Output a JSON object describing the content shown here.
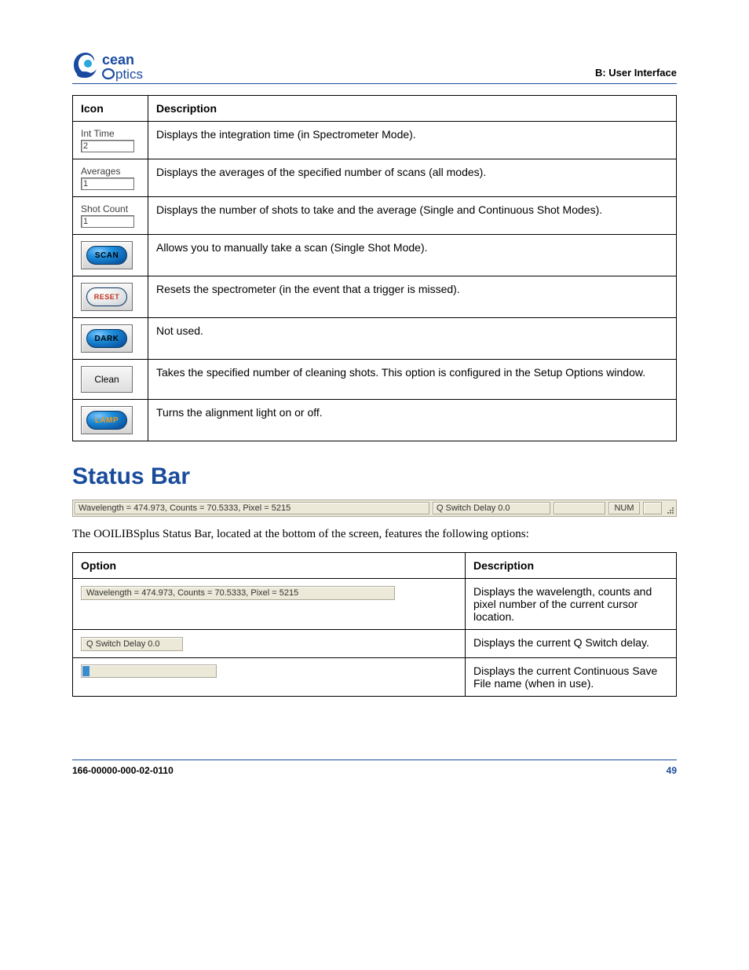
{
  "brand": {
    "name1": "Ocean",
    "name2": "Optics",
    "primary": "#1a4aa0",
    "accent": "#2aa7df"
  },
  "header_right": "B: User Interface",
  "icon_table": {
    "headers": [
      "Icon",
      "Description"
    ],
    "rows": [
      {
        "kind": "field",
        "label": "Int Time",
        "value": "2",
        "desc": "Displays the integration time (in Spectrometer Mode)."
      },
      {
        "kind": "field",
        "label": "Averages",
        "value": "1",
        "desc": "Displays the averages of the specified number of scans (all modes)."
      },
      {
        "kind": "field",
        "label": "Shot Count",
        "value": "1",
        "desc": "Displays the number of shots to take and the average (Single and Continuous Shot Modes)."
      },
      {
        "kind": "oval",
        "style": "blue",
        "text": "SCAN",
        "text_class": "oval-text-scan",
        "desc": "Allows you to manually take a scan (Single Shot Mode)."
      },
      {
        "kind": "oval",
        "style": "white",
        "text": "RESET",
        "text_class": "",
        "desc": "Resets the spectrometer (in the event that a trigger is missed)."
      },
      {
        "kind": "oval",
        "style": "blue",
        "text": "DARK",
        "text_class": "oval-text-dark",
        "desc": "Not used."
      },
      {
        "kind": "plain",
        "text": "Clean",
        "desc": "Takes the specified number of cleaning shots. This option is configured in the Setup Options window."
      },
      {
        "kind": "oval",
        "style": "blue",
        "text": "LAMP",
        "text_class": "oval-text-lamp",
        "desc": "Turns the alignment light on or off."
      }
    ]
  },
  "section_heading": "Status Bar",
  "statusbar": {
    "main": "Wavelength = 474.973, Counts = 70.5333, Pixel = 5215",
    "qswitch": "Q Switch Delay 0.0",
    "num": "NUM"
  },
  "status_paragraph": "The OOILIBSplus Status Bar, located at the bottom of the screen, features the following options:",
  "option_table": {
    "headers": [
      "Option",
      "Description"
    ],
    "rows": [
      {
        "kind": "segment",
        "text": "Wavelength = 474.973, Counts = 70.5333, Pixel = 5215",
        "cls": "wide",
        "desc": "Displays the wavelength, counts and pixel number of the current cursor location."
      },
      {
        "kind": "segment",
        "text": "Q Switch Delay 0.0",
        "cls": "medium",
        "desc": "Displays the current Q Switch delay."
      },
      {
        "kind": "progress",
        "desc": "Displays the current Continuous Save File name (when in use)."
      }
    ]
  },
  "footer": {
    "docnum": "166-00000-000-02-0110",
    "page": "49"
  }
}
